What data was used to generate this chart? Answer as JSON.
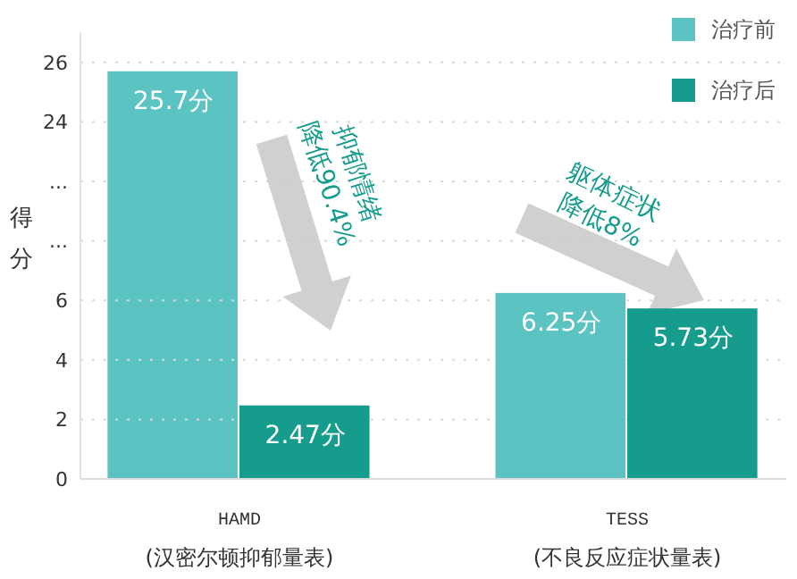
{
  "chart_data": [
    {
      "type": "bar",
      "categories": [
        null,
        null
      ],
      "ylabel": "得分",
      "series": [
        {
          "name": "治疗前",
          "color": "#5cc3c3",
          "values": [
            25.7,
            null
          ],
          "value_labels": [
            "25.7分",
            null
          ]
        },
        {
          "name": "治疗后",
          "color": "#169c8c",
          "values": [
            null,
            null
          ]
        }
      ],
      "ylim": [
        19,
        27
      ],
      "yticks": [
        {
          "value": 20,
          "label": "..."
        },
        {
          "value": 22,
          "label": "..."
        },
        24,
        26
      ],
      "grid": "y",
      "legend": "top right",
      "annotations": [
        "抑郁情绪\n降低90.4%",
        "躯体症状\n降低8%"
      ]
    },
    {
      "type": "bar",
      "categories": [
        "HAMD\n(汉密尔顿抑郁量表)",
        "TESS\n(不良反应症状量表)"
      ],
      "series": [
        {
          "color": "#5cc3c3",
          "values": [
            null,
            6.25
          ],
          "value_labels": [
            null,
            "6.25分"
          ]
        },
        {
          "color": "#169c8c",
          "values": [
            2.47,
            5.73
          ],
          "value_labels": [
            "2.47分",
            "5.73分"
          ]
        }
      ],
      "ylim": [
        0,
        7
      ],
      "yticks": [
        0,
        2,
        4,
        6
      ],
      "grid": "y"
    }
  ]
}
